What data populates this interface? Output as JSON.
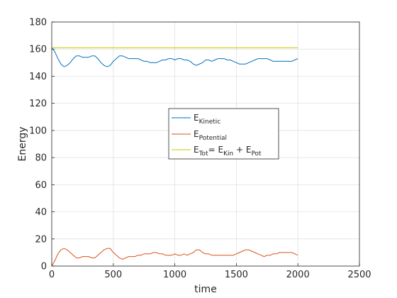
{
  "chart_data": {
    "type": "line",
    "title": "",
    "xlabel": "time",
    "ylabel": "Energy",
    "xlim": [
      0,
      2500
    ],
    "ylim": [
      0,
      180
    ],
    "xticks": [
      0,
      500,
      1000,
      1500,
      2000,
      2500
    ],
    "yticks": [
      0,
      20,
      40,
      60,
      80,
      100,
      120,
      140,
      160,
      180
    ],
    "grid": true,
    "legend_position": "center",
    "legend": [
      {
        "base": "E",
        "sub": "Kinetic",
        "rest": ""
      },
      {
        "base": "E",
        "sub": "Potential",
        "rest": ""
      },
      {
        "parts": [
          {
            "t": "E",
            "sub": false
          },
          {
            "t": "Tot",
            "sub": true
          },
          {
            "t": "= E",
            "sub": false
          },
          {
            "t": "Kin",
            "sub": true
          },
          {
            "t": " + E",
            "sub": false
          },
          {
            "t": "Pot",
            "sub": true
          }
        ]
      }
    ],
    "series": [
      {
        "color": "#0072BD",
        "x": [
          0,
          25,
          50,
          75,
          100,
          125,
          150,
          175,
          200,
          225,
          250,
          275,
          300,
          325,
          350,
          375,
          400,
          425,
          450,
          475,
          500,
          525,
          550,
          575,
          600,
          625,
          650,
          675,
          700,
          725,
          750,
          775,
          800,
          825,
          850,
          875,
          900,
          925,
          950,
          975,
          1000,
          1025,
          1050,
          1075,
          1100,
          1125,
          1150,
          1175,
          1200,
          1225,
          1250,
          1275,
          1300,
          1325,
          1350,
          1375,
          1400,
          1425,
          1450,
          1475,
          1500,
          1525,
          1550,
          1575,
          1600,
          1625,
          1650,
          1675,
          1700,
          1725,
          1750,
          1775,
          1800,
          1825,
          1850,
          1875,
          1900,
          1925,
          1950,
          1975,
          2000
        ],
        "y": [
          161,
          158,
          153,
          149,
          147,
          148,
          150,
          153,
          155,
          155,
          154,
          154,
          154,
          155,
          155,
          153,
          150,
          148,
          147,
          148,
          151,
          153,
          155,
          155,
          154,
          153,
          153,
          153,
          153,
          152,
          151,
          151,
          150,
          150,
          150,
          151,
          152,
          152,
          153,
          153,
          152,
          153,
          153,
          152,
          152,
          151,
          149,
          148,
          149,
          150,
          152,
          152,
          151,
          152,
          153,
          153,
          153,
          152,
          152,
          151,
          150,
          149,
          149,
          149,
          150,
          151,
          152,
          153,
          153,
          153,
          153,
          152,
          151,
          151,
          151,
          151,
          151,
          151,
          151,
          152,
          153
        ]
      },
      {
        "color": "#D95319",
        "x": [
          0,
          25,
          50,
          75,
          100,
          125,
          150,
          175,
          200,
          225,
          250,
          275,
          300,
          325,
          350,
          375,
          400,
          425,
          450,
          475,
          500,
          525,
          550,
          575,
          600,
          625,
          650,
          675,
          700,
          725,
          750,
          775,
          800,
          825,
          850,
          875,
          900,
          925,
          950,
          975,
          1000,
          1025,
          1050,
          1075,
          1100,
          1125,
          1150,
          1175,
          1200,
          1225,
          1250,
          1275,
          1300,
          1325,
          1350,
          1375,
          1400,
          1425,
          1450,
          1475,
          1500,
          1525,
          1550,
          1575,
          1600,
          1625,
          1650,
          1675,
          1700,
          1725,
          1750,
          1775,
          1800,
          1825,
          1850,
          1875,
          1900,
          1925,
          1950,
          1975,
          2000
        ],
        "y": [
          0,
          4,
          9,
          12,
          13,
          12,
          10,
          8,
          6,
          6,
          7,
          7,
          7,
          6,
          6,
          8,
          10,
          12,
          13,
          13,
          10,
          8,
          6,
          5,
          6,
          7,
          7,
          7,
          8,
          8,
          9,
          9,
          9,
          10,
          10,
          9,
          9,
          8,
          8,
          8,
          9,
          8,
          8,
          9,
          8,
          9,
          10,
          12,
          12,
          10,
          9,
          9,
          8,
          8,
          8,
          8,
          8,
          8,
          8,
          8,
          9,
          10,
          11,
          12,
          12,
          11,
          10,
          9,
          8,
          7,
          8,
          8,
          9,
          9,
          10,
          10,
          10,
          10,
          10,
          9,
          8
        ]
      },
      {
        "color": "#C8C800",
        "x": [
          0,
          2000
        ],
        "y": [
          161,
          161
        ]
      }
    ]
  }
}
